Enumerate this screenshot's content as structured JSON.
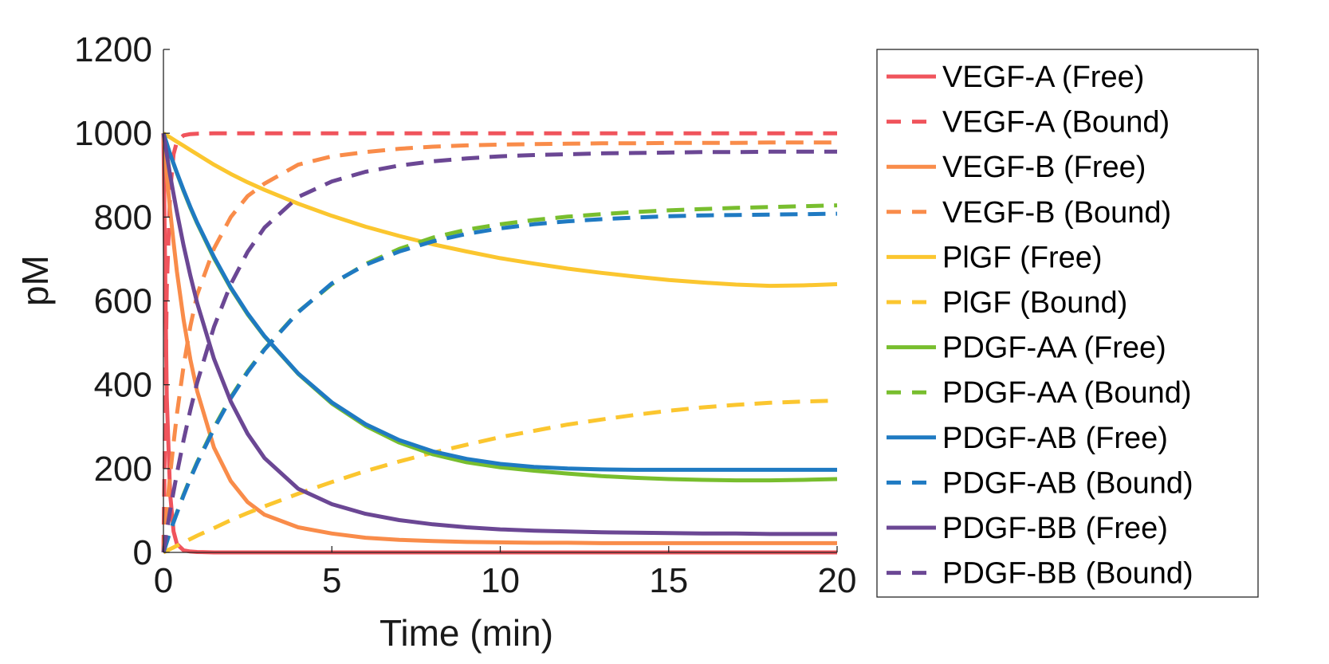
{
  "chart_data": {
    "type": "line",
    "title": "",
    "xlabel": "Time (min)",
    "ylabel": "pM",
    "xlim": [
      0,
      20
    ],
    "ylim": [
      0,
      1200
    ],
    "xticks": [
      0,
      5,
      10,
      15,
      20
    ],
    "yticks": [
      0,
      200,
      400,
      600,
      800,
      1000,
      1200
    ],
    "grid": false,
    "legend_position": "right",
    "x": [
      0,
      0.1,
      0.2,
      0.3,
      0.4,
      0.6,
      0.8,
      1,
      1.5,
      2,
      2.5,
      3,
      4,
      5,
      6,
      7,
      8,
      9,
      10,
      11,
      12,
      13,
      14,
      15,
      16,
      17,
      18,
      19,
      20
    ],
    "series": [
      {
        "name": "VEGF-A (Free)",
        "color": "#f0545c",
        "dash": "solid",
        "values": [
          1000,
          370,
          140,
          50,
          20,
          5,
          2,
          1,
          0,
          0,
          0,
          0,
          0,
          0,
          0,
          0,
          0,
          0,
          0,
          0,
          0,
          0,
          0,
          0,
          0,
          0,
          0,
          0,
          0
        ]
      },
      {
        "name": "VEGF-A (Bound)",
        "color": "#f0545c",
        "dash": "dashed",
        "values": [
          0,
          630,
          860,
          950,
          980,
          995,
          998,
          999,
          1000,
          1000,
          1000,
          1000,
          1000,
          1000,
          1000,
          1000,
          1000,
          1000,
          1000,
          1000,
          1000,
          1000,
          1000,
          1000,
          1000,
          1000,
          1000,
          1000,
          1000
        ]
      },
      {
        "name": "VEGF-B (Free)",
        "color": "#f98c4a",
        "dash": "solid",
        "values": [
          1000,
          900,
          815,
          740,
          670,
          555,
          460,
          385,
          250,
          170,
          120,
          90,
          60,
          45,
          35,
          30,
          27,
          25,
          24,
          23,
          23,
          22,
          22,
          22,
          22,
          22,
          22,
          22,
          22
        ]
      },
      {
        "name": "VEGF-B (Bound)",
        "color": "#f98c4a",
        "dash": "dashed",
        "values": [
          0,
          100,
          185,
          260,
          330,
          445,
          540,
          615,
          725,
          800,
          850,
          880,
          925,
          945,
          955,
          963,
          968,
          971,
          973,
          974,
          975,
          976,
          976,
          977,
          977,
          977,
          978,
          978,
          978
        ]
      },
      {
        "name": "PlGF (Free)",
        "color": "#fbc62f",
        "dash": "solid",
        "values": [
          1000,
          995,
          990,
          985,
          980,
          970,
          960,
          950,
          925,
          903,
          883,
          865,
          832,
          803,
          777,
          755,
          735,
          718,
          702,
          689,
          677,
          667,
          658,
          650,
          644,
          639,
          636,
          637,
          640
        ]
      },
      {
        "name": "PlGF (Bound)",
        "color": "#fbc62f",
        "dash": "dashed",
        "values": [
          0,
          4,
          8,
          12,
          16,
          24,
          32,
          40,
          58,
          77,
          94,
          110,
          140,
          168,
          194,
          217,
          238,
          257,
          275,
          290,
          305,
          317,
          328,
          338,
          346,
          352,
          357,
          360,
          362
        ]
      },
      {
        "name": "PDGF-AA (Free)",
        "color": "#78be2e",
        "dash": "solid",
        "values": [
          1000,
          975,
          950,
          927,
          905,
          862,
          822,
          785,
          702,
          630,
          568,
          515,
          426,
          355,
          302,
          262,
          234,
          215,
          203,
          195,
          188,
          182,
          178,
          175,
          173,
          172,
          172,
          173,
          175
        ]
      },
      {
        "name": "PDGF-AA (Bound)",
        "color": "#78be2e",
        "dash": "dashed",
        "values": [
          0,
          25,
          50,
          73,
          95,
          138,
          178,
          215,
          298,
          370,
          432,
          485,
          574,
          640,
          688,
          724,
          751,
          770,
          783,
          793,
          801,
          807,
          812,
          816,
          819,
          822,
          824,
          826,
          828
        ]
      },
      {
        "name": "PDGF-AB (Free)",
        "color": "#1f7ac2",
        "dash": "solid",
        "values": [
          1000,
          975,
          950,
          928,
          906,
          864,
          824,
          787,
          705,
          632,
          570,
          516,
          427,
          358,
          306,
          268,
          241,
          223,
          211,
          204,
          200,
          198,
          197,
          197,
          197,
          197,
          197,
          197,
          197
        ]
      },
      {
        "name": "PDGF-AB (Bound)",
        "color": "#1f7ac2",
        "dash": "dashed",
        "values": [
          0,
          25,
          50,
          72,
          94,
          136,
          176,
          213,
          295,
          368,
          430,
          484,
          573,
          642,
          686,
          718,
          742,
          760,
          773,
          783,
          790,
          795,
          799,
          802,
          804,
          805,
          806,
          807,
          808
        ]
      },
      {
        "name": "PDGF-BB (Free)",
        "color": "#6b4794",
        "dash": "solid",
        "values": [
          1000,
          950,
          900,
          855,
          812,
          732,
          660,
          595,
          462,
          360,
          283,
          225,
          152,
          115,
          92,
          77,
          67,
          60,
          55,
          52,
          50,
          48,
          47,
          46,
          45,
          45,
          44,
          44,
          44
        ]
      },
      {
        "name": "PDGF-BB (Bound)",
        "color": "#6b4794",
        "dash": "dashed",
        "values": [
          0,
          50,
          100,
          145,
          188,
          268,
          340,
          405,
          538,
          640,
          717,
          775,
          848,
          885,
          908,
          923,
          933,
          940,
          945,
          948,
          950,
          952,
          953,
          954,
          955,
          955,
          956,
          956,
          956
        ]
      }
    ]
  }
}
